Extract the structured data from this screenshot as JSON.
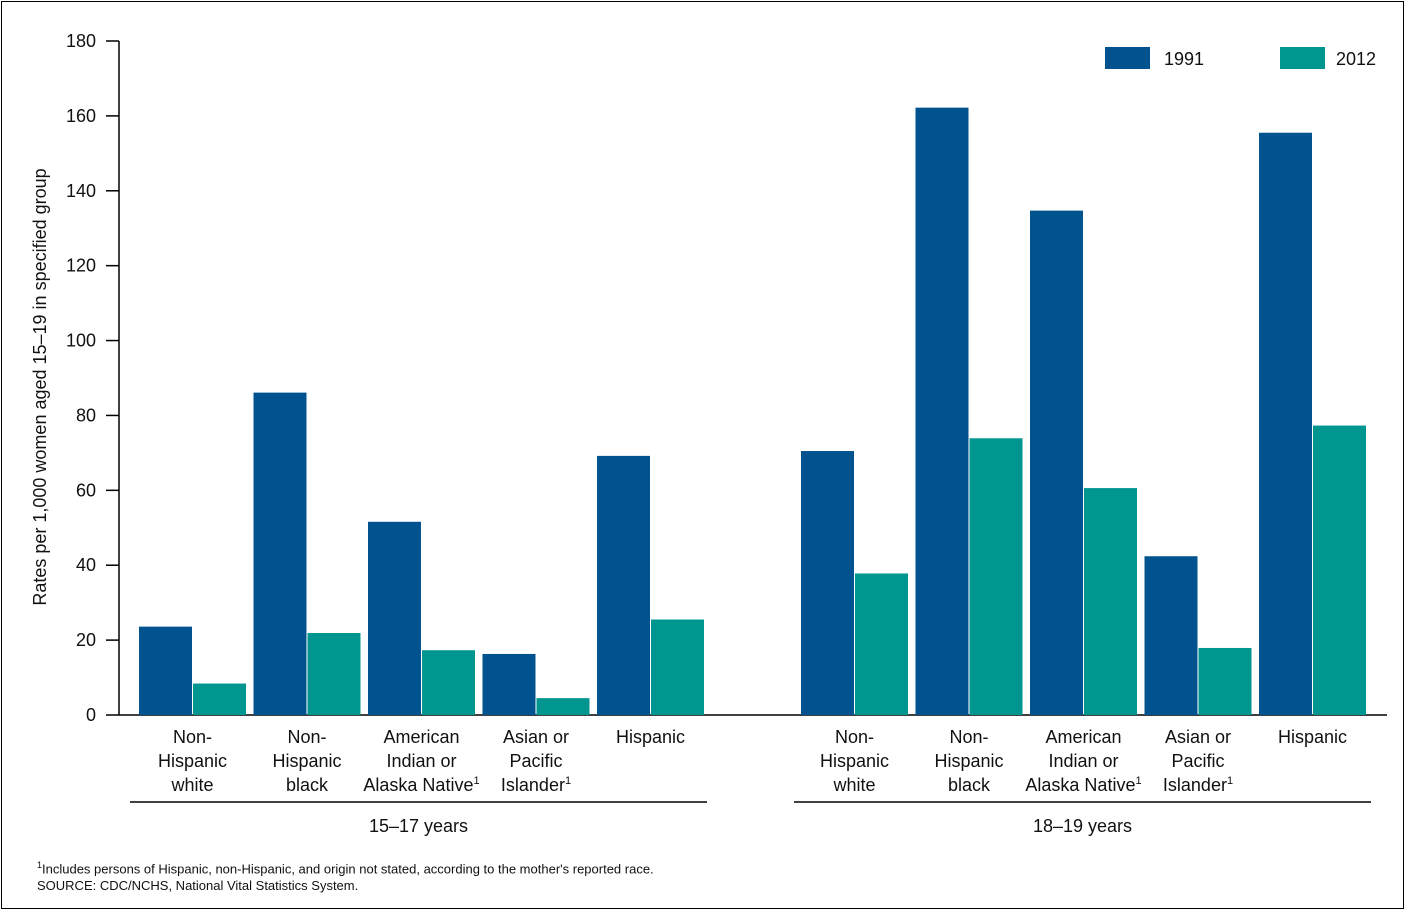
{
  "chart_data": {
    "type": "bar",
    "ylabel": "Rates per 1,000 women aged 15–19 in specified group",
    "ylim": [
      0,
      180
    ],
    "yticks": [
      0,
      20,
      40,
      60,
      80,
      100,
      120,
      140,
      160,
      180
    ],
    "categories": [
      "Non-Hispanic white",
      "Non-Hispanic black",
      "American Indian or Alaska Native¹",
      "Asian or Pacific Islander¹",
      "Hispanic"
    ],
    "category_lines": [
      [
        "Non-",
        "Hispanic",
        "white"
      ],
      [
        "Non-",
        "Hispanic",
        "black"
      ],
      [
        "American",
        "Indian or",
        "Alaska Native¹"
      ],
      [
        "Asian or",
        "Pacific",
        "Islander¹"
      ],
      [
        "Hispanic"
      ]
    ],
    "groups": [
      {
        "name": "15–17 years",
        "1991": [
          23.6,
          86.1,
          51.6,
          16.3,
          69.2
        ],
        "2012": [
          8.4,
          21.9,
          17.3,
          4.5,
          25.5
        ]
      },
      {
        "name": "18–19 years",
        "1991": [
          70.5,
          162.2,
          134.7,
          42.4,
          155.5
        ],
        "2012": [
          37.8,
          73.9,
          60.6,
          17.9,
          77.3
        ]
      }
    ],
    "series": [
      {
        "name": "1991",
        "color": "#00538f"
      },
      {
        "name": "2012",
        "color": "#009690"
      }
    ],
    "legend_position": "top-right",
    "grid": false
  },
  "footnote": "Includes persons of Hispanic, non-Hispanic, and origin not stated, according to the mother's reported race.",
  "footnote_mark": "1",
  "source": "SOURCE: CDC/NCHS, National Vital Statistics System."
}
